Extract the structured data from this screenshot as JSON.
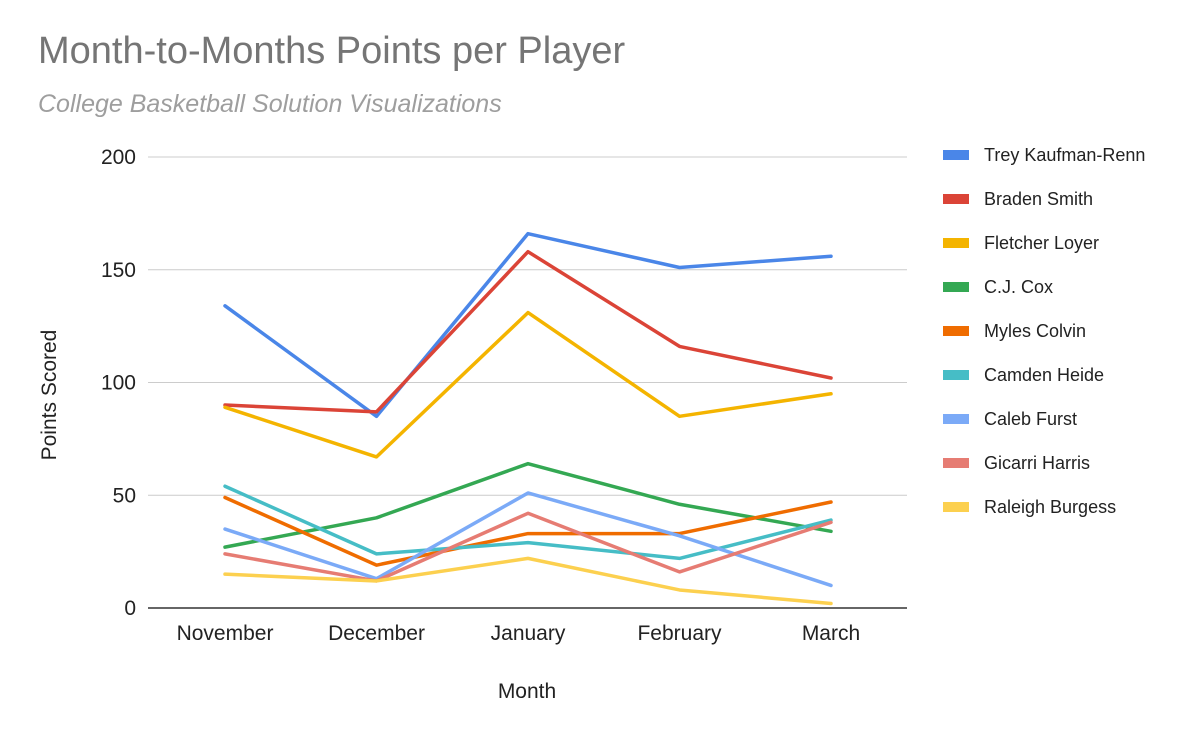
{
  "chart_data": {
    "type": "line",
    "title": "Month-to-Months Points per Player",
    "subtitle": "College Basketball Solution Visualizations",
    "xlabel": "Month",
    "ylabel": "Points Scored",
    "categories": [
      "November",
      "December",
      "January",
      "February",
      "March"
    ],
    "ylim": [
      0,
      200
    ],
    "yticks": [
      0,
      50,
      100,
      150,
      200
    ],
    "grid": true,
    "legend_position": "right",
    "series": [
      {
        "name": "Trey Kaufman-Renn",
        "color": "#4a86e8",
        "values": [
          134,
          85,
          166,
          151,
          156
        ]
      },
      {
        "name": "Braden Smith",
        "color": "#db4437",
        "values": [
          90,
          87,
          158,
          116,
          102
        ]
      },
      {
        "name": "Fletcher Loyer",
        "color": "#f4b400",
        "values": [
          89,
          67,
          131,
          85,
          95
        ]
      },
      {
        "name": "C.J. Cox",
        "color": "#34a853",
        "values": [
          27,
          40,
          64,
          46,
          34
        ]
      },
      {
        "name": "Myles Colvin",
        "color": "#ef6c00",
        "values": [
          49,
          19,
          33,
          33,
          47
        ]
      },
      {
        "name": "Camden Heide",
        "color": "#46bdc6",
        "values": [
          54,
          24,
          29,
          22,
          39
        ]
      },
      {
        "name": "Caleb Furst",
        "color": "#7baaf7",
        "values": [
          35,
          13,
          51,
          32,
          10
        ]
      },
      {
        "name": "Gicarri Harris",
        "color": "#e67c73",
        "values": [
          24,
          12,
          42,
          16,
          38
        ]
      },
      {
        "name": "Raleigh Burgess",
        "color": "#fcd04f",
        "values": [
          15,
          12,
          22,
          8,
          2
        ]
      }
    ]
  }
}
